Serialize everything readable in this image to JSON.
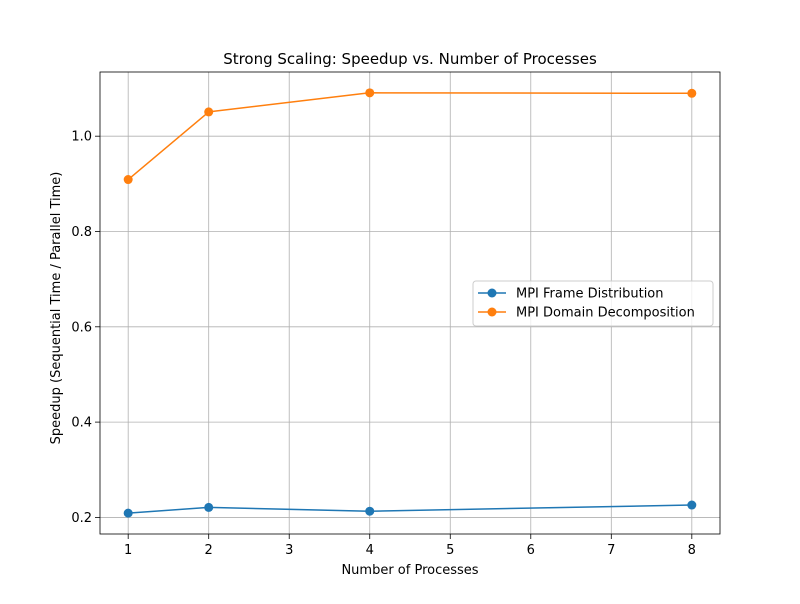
{
  "chart_data": {
    "type": "line",
    "title": "Strong Scaling: Speedup vs. Number of Processes",
    "xlabel": "Number of Processes",
    "ylabel": "Speedup (Sequential Time / Parallel Time)",
    "xlim": [
      0.65,
      8.35
    ],
    "ylim": [
      0.1652,
      1.1347
    ],
    "x_ticks": [
      1,
      2,
      3,
      4,
      5,
      6,
      7,
      8
    ],
    "y_ticks": [
      0.2,
      0.4,
      0.6,
      0.8,
      1.0
    ],
    "grid": true,
    "legend_position": "center-right",
    "series": [
      {
        "name": "MPI Frame Distribution",
        "color": "#1f77b4",
        "marker": "circle",
        "x": [
          1,
          2,
          4,
          8
        ],
        "y": [
          0.209,
          0.221,
          0.213,
          0.226
        ]
      },
      {
        "name": "MPI Domain Decomposition",
        "color": "#ff7f0e",
        "marker": "circle",
        "x": [
          1,
          2,
          4,
          8
        ],
        "y": [
          0.909,
          1.051,
          1.091,
          1.09
        ]
      }
    ]
  }
}
